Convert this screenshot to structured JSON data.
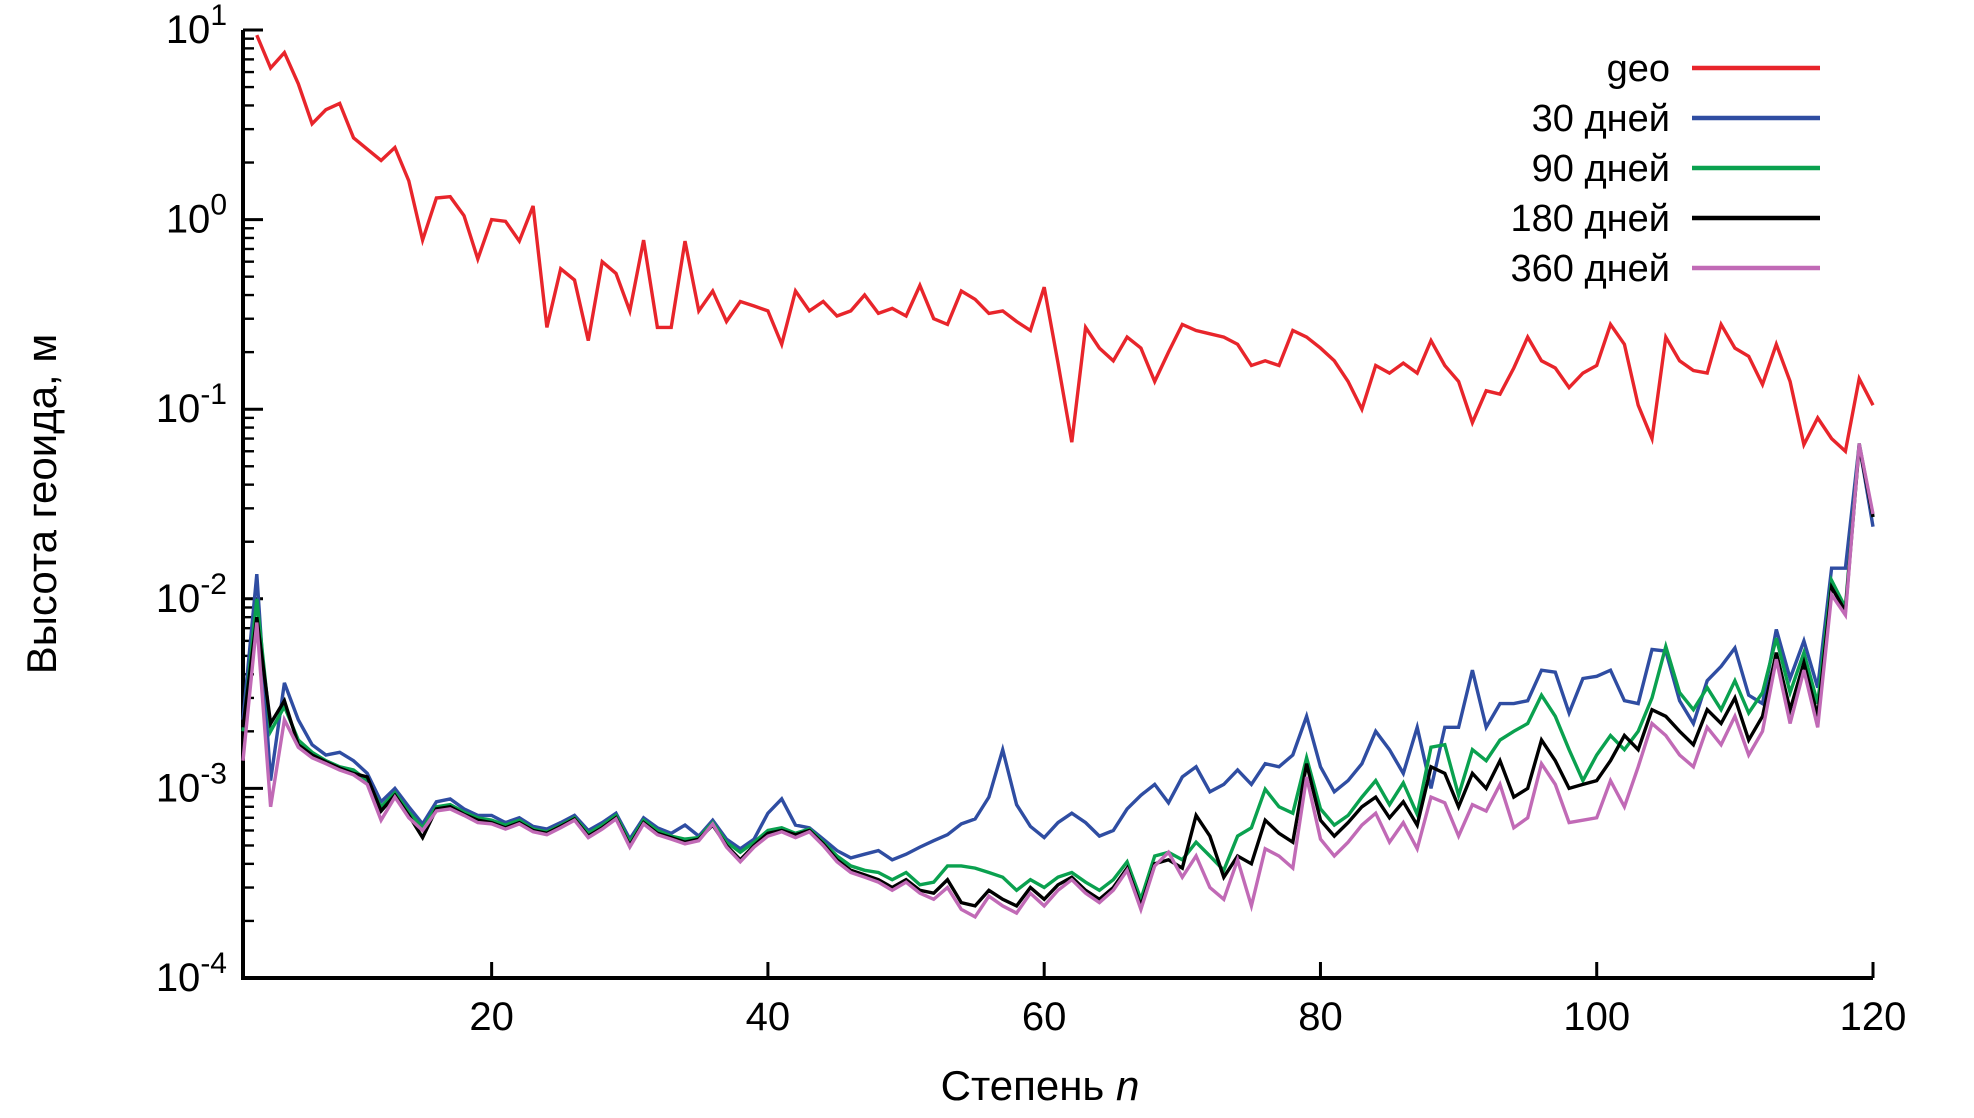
{
  "chart_data": {
    "type": "line",
    "title": "",
    "xlabel": "Степень",
    "xlabel_italic": "n",
    "ylabel": "Высота геоида, м",
    "x_axis": {
      "min": 2,
      "max": 120,
      "ticks": [
        20,
        40,
        60,
        80,
        100,
        120
      ],
      "scale": "linear"
    },
    "y_axis": {
      "scale": "log",
      "min_exp": -4,
      "max_exp": 1,
      "tick_exponents": [
        1,
        0,
        -1,
        -2,
        -3,
        -4
      ],
      "tick_base": "10"
    },
    "grid": false,
    "legend_position": "top-right",
    "axis_color": "#000000",
    "background_color": "#ffffff",
    "series": [
      {
        "name": "geo",
        "color": "#e8252b",
        "x_start": 3,
        "values": [
          9.4,
          6.3,
          7.6,
          5.2,
          3.2,
          3.8,
          4.1,
          2.7,
          2.35,
          2.05,
          2.4,
          1.6,
          0.78,
          1.3,
          1.32,
          1.05,
          0.62,
          1.0,
          0.98,
          0.77,
          1.18,
          0.27,
          0.55,
          0.48,
          0.23,
          0.6,
          0.52,
          0.33,
          0.78,
          0.27,
          0.27,
          0.77,
          0.33,
          0.42,
          0.29,
          0.37,
          0.35,
          0.33,
          0.22,
          0.42,
          0.33,
          0.37,
          0.31,
          0.33,
          0.4,
          0.32,
          0.34,
          0.31,
          0.45,
          0.3,
          0.28,
          0.42,
          0.38,
          0.32,
          0.33,
          0.29,
          0.26,
          0.44,
          0.175,
          0.067,
          0.27,
          0.21,
          0.18,
          0.24,
          0.21,
          0.14,
          0.2,
          0.28,
          0.26,
          0.25,
          0.24,
          0.22,
          0.17,
          0.18,
          0.17,
          0.26,
          0.24,
          0.21,
          0.18,
          0.14,
          0.1,
          0.17,
          0.155,
          0.175,
          0.155,
          0.23,
          0.17,
          0.14,
          0.085,
          0.125,
          0.12,
          0.165,
          0.24,
          0.18,
          0.165,
          0.13,
          0.155,
          0.17,
          0.28,
          0.22,
          0.105,
          0.07,
          0.24,
          0.18,
          0.16,
          0.155,
          0.28,
          0.21,
          0.19,
          0.135,
          0.22,
          0.14,
          0.065,
          0.09,
          0.07,
          0.06,
          0.145,
          0.105
        ]
      },
      {
        "name": "30 дней",
        "color": "#2f4da2",
        "x_start": 2,
        "values": [
          0.0023,
          0.0135,
          0.0011,
          0.0036,
          0.0023,
          0.0017,
          0.0015,
          0.00155,
          0.0014,
          0.0012,
          0.00085,
          0.001,
          0.0008,
          0.00065,
          0.00085,
          0.00088,
          0.00078,
          0.00072,
          0.00072,
          0.00066,
          0.0007,
          0.00063,
          0.00061,
          0.00066,
          0.00072,
          0.0006,
          0.00066,
          0.00074,
          0.00054,
          0.0007,
          0.00062,
          0.00058,
          0.00064,
          0.00056,
          0.00068,
          0.00054,
          0.00048,
          0.00054,
          0.00074,
          0.00088,
          0.00064,
          0.00062,
          0.00054,
          0.00047,
          0.00043,
          0.00045,
          0.00047,
          0.00042,
          0.00045,
          0.00049,
          0.00053,
          0.00057,
          0.00065,
          0.00069,
          0.0009,
          0.0016,
          0.00082,
          0.00063,
          0.00055,
          0.00066,
          0.00074,
          0.00066,
          0.00056,
          0.0006,
          0.00078,
          0.00092,
          0.00105,
          0.00084,
          0.00115,
          0.0013,
          0.00096,
          0.00105,
          0.00125,
          0.00105,
          0.00135,
          0.0013,
          0.0015,
          0.0024,
          0.0013,
          0.00096,
          0.0011,
          0.00135,
          0.002,
          0.0016,
          0.0012,
          0.0021,
          0.001,
          0.0021,
          0.0021,
          0.0042,
          0.0021,
          0.0028,
          0.0028,
          0.0029,
          0.0042,
          0.0041,
          0.0025,
          0.0038,
          0.0039,
          0.0042,
          0.0029,
          0.0028,
          0.0054,
          0.0053,
          0.0029,
          0.0022,
          0.0037,
          0.0044,
          0.0055,
          0.0031,
          0.0028,
          0.0069,
          0.0038,
          0.006,
          0.0034,
          0.0145,
          0.0145,
          0.065,
          0.024
        ]
      },
      {
        "name": "90 дней",
        "color": "#0aa14f",
        "x_start": 2,
        "values": [
          0.002,
          0.01,
          0.002,
          0.0027,
          0.0018,
          0.00155,
          0.0014,
          0.0013,
          0.00125,
          0.0011,
          0.0008,
          0.00095,
          0.00075,
          0.00062,
          0.0008,
          0.00082,
          0.00075,
          0.0007,
          0.00068,
          0.00064,
          0.00068,
          0.00061,
          0.00059,
          0.00064,
          0.0007,
          0.00058,
          0.00064,
          0.00072,
          0.00052,
          0.00068,
          0.0006,
          0.00056,
          0.00054,
          0.00055,
          0.00066,
          0.00052,
          0.00046,
          0.00052,
          0.0006,
          0.00062,
          0.00058,
          0.00061,
          0.00052,
          0.00044,
          0.00039,
          0.00037,
          0.00036,
          0.00033,
          0.00036,
          0.00031,
          0.00032,
          0.00039,
          0.00039,
          0.00038,
          0.00036,
          0.00034,
          0.00029,
          0.00033,
          0.0003,
          0.00034,
          0.00036,
          0.00032,
          0.00029,
          0.00033,
          0.00041,
          0.00026,
          0.00044,
          0.00046,
          0.00042,
          0.00052,
          0.00044,
          0.00037,
          0.00056,
          0.00062,
          0.00099,
          0.0008,
          0.00074,
          0.00145,
          0.00078,
          0.00064,
          0.00072,
          0.0009,
          0.0011,
          0.00082,
          0.00107,
          0.00073,
          0.00165,
          0.0017,
          0.00092,
          0.0016,
          0.0014,
          0.0018,
          0.002,
          0.0022,
          0.0031,
          0.0024,
          0.0016,
          0.0011,
          0.0015,
          0.0019,
          0.0016,
          0.002,
          0.003,
          0.0056,
          0.0032,
          0.0026,
          0.0034,
          0.0026,
          0.0037,
          0.0025,
          0.0032,
          0.0062,
          0.0032,
          0.0052,
          0.0028,
          0.0125,
          0.009,
          0.066,
          0.027
        ]
      },
      {
        "name": "180 дней",
        "color": "#000000",
        "x_start": 2,
        "values": [
          0.0021,
          0.008,
          0.0022,
          0.0029,
          0.0017,
          0.0015,
          0.00138,
          0.00128,
          0.0012,
          0.00115,
          0.00076,
          0.00092,
          0.00072,
          0.00055,
          0.00078,
          0.0008,
          0.00073,
          0.00068,
          0.00066,
          0.00062,
          0.00066,
          0.0006,
          0.00058,
          0.00063,
          0.00069,
          0.00056,
          0.00062,
          0.0007,
          0.0005,
          0.00066,
          0.00058,
          0.00055,
          0.00052,
          0.00054,
          0.00064,
          0.0005,
          0.00042,
          0.0005,
          0.00058,
          0.0006,
          0.00057,
          0.0006,
          0.00051,
          0.00042,
          0.00037,
          0.00035,
          0.00033,
          0.0003,
          0.00033,
          0.00029,
          0.00028,
          0.00033,
          0.00025,
          0.00024,
          0.00029,
          0.00026,
          0.00024,
          0.0003,
          0.00026,
          0.00031,
          0.00034,
          0.00029,
          0.00026,
          0.0003,
          0.00038,
          0.00024,
          0.0004,
          0.00042,
          0.00038,
          0.00072,
          0.00056,
          0.00034,
          0.00044,
          0.0004,
          0.00068,
          0.00058,
          0.00052,
          0.00135,
          0.00068,
          0.00056,
          0.00066,
          0.0008,
          0.0009,
          0.0007,
          0.00085,
          0.00064,
          0.0013,
          0.0012,
          0.0008,
          0.0012,
          0.001,
          0.0014,
          0.0009,
          0.001,
          0.0018,
          0.0014,
          0.001,
          0.00105,
          0.0011,
          0.0014,
          0.0019,
          0.0016,
          0.0026,
          0.0024,
          0.002,
          0.0017,
          0.0026,
          0.0022,
          0.003,
          0.0018,
          0.0024,
          0.0052,
          0.0026,
          0.0046,
          0.0024,
          0.0115,
          0.0086,
          0.064,
          0.027
        ]
      },
      {
        "name": "360 дней",
        "color": "#c16ab6",
        "x_start": 2,
        "values": [
          0.0014,
          0.0075,
          0.0008,
          0.0023,
          0.00165,
          0.00145,
          0.00135,
          0.00125,
          0.00118,
          0.00105,
          0.00068,
          0.0009,
          0.0007,
          0.0006,
          0.00076,
          0.00078,
          0.00072,
          0.00066,
          0.00065,
          0.00061,
          0.00065,
          0.00059,
          0.00057,
          0.00062,
          0.00068,
          0.00055,
          0.00061,
          0.00069,
          0.00049,
          0.00065,
          0.00057,
          0.00054,
          0.00051,
          0.00053,
          0.00065,
          0.00049,
          0.00041,
          0.00049,
          0.00056,
          0.00059,
          0.00055,
          0.00059,
          0.0005,
          0.00041,
          0.00036,
          0.00034,
          0.00032,
          0.00029,
          0.00032,
          0.00028,
          0.00026,
          0.0003,
          0.00023,
          0.00021,
          0.00027,
          0.00024,
          0.00022,
          0.00028,
          0.00024,
          0.00029,
          0.00033,
          0.00028,
          0.00025,
          0.00029,
          0.00037,
          0.00023,
          0.00039,
          0.00046,
          0.00034,
          0.00044,
          0.0003,
          0.00026,
          0.00042,
          0.00024,
          0.00048,
          0.00044,
          0.00038,
          0.00115,
          0.00054,
          0.00044,
          0.00052,
          0.00064,
          0.00074,
          0.00052,
          0.00066,
          0.00048,
          0.0009,
          0.00084,
          0.00056,
          0.00082,
          0.00076,
          0.00105,
          0.00062,
          0.0007,
          0.00135,
          0.00105,
          0.00066,
          0.00068,
          0.0007,
          0.0011,
          0.0008,
          0.0013,
          0.0022,
          0.0019,
          0.0015,
          0.0013,
          0.0021,
          0.0017,
          0.0024,
          0.0015,
          0.002,
          0.0048,
          0.0022,
          0.0042,
          0.0021,
          0.0105,
          0.0082,
          0.066,
          0.028
        ]
      }
    ]
  }
}
